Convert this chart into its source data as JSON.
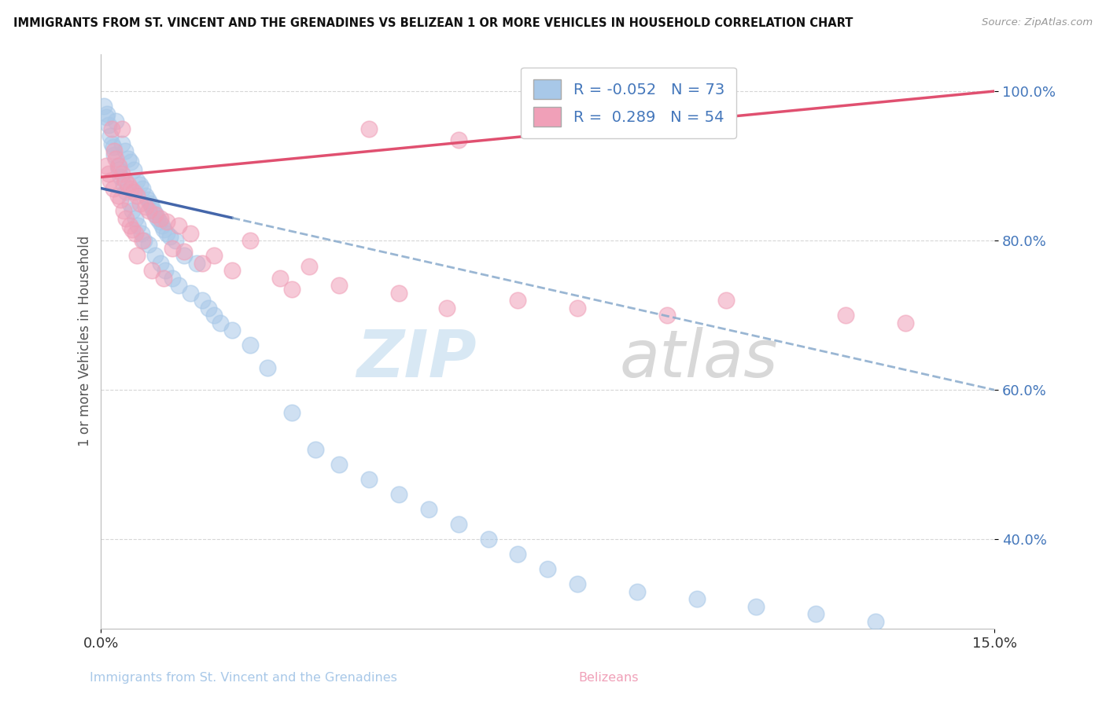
{
  "title": "IMMIGRANTS FROM ST. VINCENT AND THE GRENADINES VS BELIZEAN 1 OR MORE VEHICLES IN HOUSEHOLD CORRELATION CHART",
  "source": "Source: ZipAtlas.com",
  "xlabel_blue": "Immigrants from St. Vincent and the Grenadines",
  "xlabel_pink": "Belizeans",
  "ylabel": "1 or more Vehicles in Household",
  "xmin": 0.0,
  "xmax": 15.0,
  "ymin": 28.0,
  "ymax": 105.0,
  "yticks": [
    40.0,
    60.0,
    80.0,
    100.0
  ],
  "R_blue": -0.052,
  "N_blue": 73,
  "R_pink": 0.289,
  "N_pink": 54,
  "blue_color": "#A8C8E8",
  "pink_color": "#F0A0B8",
  "trend_blue_solid_color": "#4466AA",
  "trend_blue_dash_color": "#88AACC",
  "trend_pink_color": "#E05070",
  "blue_trend_y0": 87.0,
  "blue_trend_y15": 60.0,
  "blue_solid_end_x": 2.2,
  "pink_trend_y0": 88.5,
  "pink_trend_y15": 100.0,
  "watermark_color": "#D8E8F4",
  "blue_scatter_x": [
    0.05,
    0.08,
    0.1,
    0.12,
    0.15,
    0.18,
    0.2,
    0.22,
    0.25,
    0.28,
    0.3,
    0.32,
    0.35,
    0.38,
    0.4,
    0.42,
    0.45,
    0.48,
    0.5,
    0.52,
    0.55,
    0.58,
    0.6,
    0.62,
    0.65,
    0.68,
    0.7,
    0.72,
    0.75,
    0.78,
    0.8,
    0.82,
    0.85,
    0.88,
    0.9,
    0.92,
    0.95,
    0.98,
    1.0,
    1.02,
    1.05,
    1.08,
    1.1,
    1.15,
    1.2,
    1.25,
    1.3,
    1.4,
    1.5,
    1.6,
    1.7,
    1.8,
    1.9,
    2.0,
    2.2,
    2.5,
    2.8,
    3.2,
    3.6,
    4.0,
    4.5,
    5.0,
    5.5,
    6.0,
    6.5,
    7.0,
    7.5,
    8.0,
    9.0,
    10.0,
    11.0,
    12.0,
    13.0
  ],
  "blue_scatter_y": [
    98.0,
    96.5,
    97.0,
    95.5,
    94.0,
    93.0,
    92.5,
    91.5,
    96.0,
    90.0,
    89.5,
    88.5,
    93.0,
    87.5,
    92.0,
    86.5,
    91.0,
    85.0,
    90.5,
    84.0,
    89.5,
    83.0,
    88.0,
    82.0,
    87.5,
    81.0,
    87.0,
    80.0,
    86.0,
    85.5,
    79.5,
    85.0,
    84.5,
    84.0,
    78.0,
    83.5,
    83.0,
    82.5,
    77.0,
    82.0,
    81.5,
    76.0,
    81.0,
    80.5,
    75.0,
    80.0,
    74.0,
    78.0,
    73.0,
    77.0,
    72.0,
    71.0,
    70.0,
    69.0,
    68.0,
    66.0,
    63.0,
    57.0,
    52.0,
    50.0,
    48.0,
    46.0,
    44.0,
    42.0,
    40.0,
    38.0,
    36.0,
    34.0,
    33.0,
    32.0,
    31.0,
    30.0,
    29.0
  ],
  "pink_scatter_x": [
    0.08,
    0.12,
    0.15,
    0.18,
    0.2,
    0.22,
    0.25,
    0.28,
    0.3,
    0.32,
    0.35,
    0.38,
    0.4,
    0.42,
    0.45,
    0.48,
    0.5,
    0.52,
    0.55,
    0.58,
    0.6,
    0.65,
    0.7,
    0.75,
    0.8,
    0.9,
    1.0,
    1.1,
    1.2,
    1.3,
    1.4,
    1.5,
    1.7,
    1.9,
    2.2,
    2.5,
    3.0,
    3.5,
    4.0,
    4.5,
    5.0,
    6.0,
    7.0,
    8.0,
    9.5,
    10.5,
    12.5,
    13.5,
    0.35,
    0.6,
    0.85,
    1.05,
    3.2,
    5.8
  ],
  "pink_scatter_y": [
    90.0,
    89.0,
    88.0,
    95.0,
    87.0,
    92.0,
    91.0,
    86.0,
    90.0,
    85.5,
    89.0,
    84.0,
    88.0,
    83.0,
    87.5,
    82.0,
    87.0,
    81.5,
    86.5,
    81.0,
    86.0,
    85.0,
    80.0,
    84.5,
    84.0,
    83.5,
    83.0,
    82.5,
    79.0,
    82.0,
    78.5,
    81.0,
    77.0,
    78.0,
    76.0,
    80.0,
    75.0,
    76.5,
    74.0,
    95.0,
    73.0,
    93.5,
    72.0,
    71.0,
    70.0,
    72.0,
    70.0,
    69.0,
    95.0,
    78.0,
    76.0,
    75.0,
    73.5,
    71.0
  ]
}
